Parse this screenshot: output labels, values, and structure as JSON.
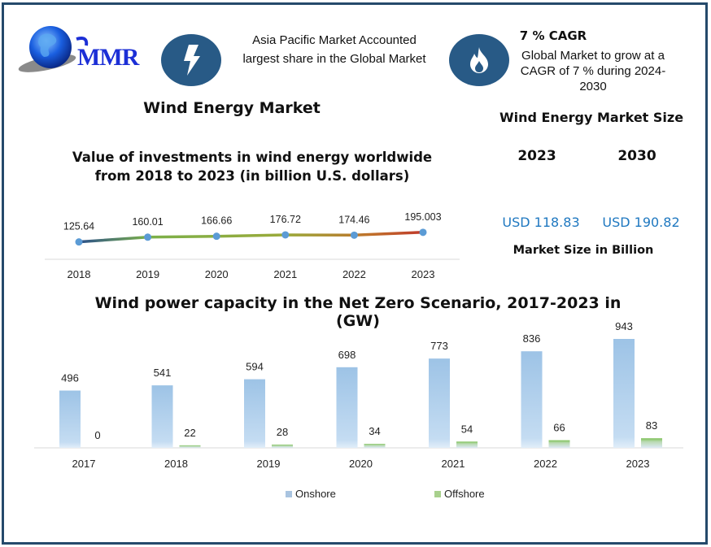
{
  "brand": {
    "logo_text": "MMR"
  },
  "colors": {
    "frame": "#254a6b",
    "icon_circle": "#285a86",
    "usd_blue": "#1f78c0",
    "onshore": "#a4c6e8",
    "offshore": "#7fc35a",
    "line_point": "#5b9bd5"
  },
  "highlights": {
    "asia": {
      "icon": "lightning-bolt-icon",
      "text": "Asia Pacific Market Accounted largest share in the Global Market"
    },
    "cagr": {
      "icon": "flame-icon",
      "title": "7 % CAGR",
      "text": "Global Market to grow at a CAGR of 7 % during 2024-2030"
    }
  },
  "main_title": "Wind Energy Market",
  "market_size": {
    "title": "Wind Energy Market Size",
    "years": [
      "2023",
      "2030"
    ],
    "values": [
      "USD 118.83",
      "USD 190.82"
    ],
    "caption": "Market Size in Billion"
  },
  "chart_data": [
    {
      "type": "line",
      "title": "Value of investments in wind energy worldwide from 2018 to 2023 (in billion U.S. dollars)",
      "xlabel": "",
      "ylabel": "",
      "categories": [
        "2018",
        "2019",
        "2020",
        "2021",
        "2022",
        "2023"
      ],
      "values": [
        125.64,
        160.01,
        166.66,
        176.72,
        174.46,
        195.003
      ],
      "labels": [
        "125.64",
        "160.01",
        "166.66",
        "176.72",
        "174.46",
        "195.003"
      ],
      "ylim": [
        0,
        700
      ],
      "grid": false,
      "legend": "none"
    },
    {
      "type": "bar",
      "title": "Wind power capacity in the Net Zero Scenario, 2017-2023 in (GW)",
      "xlabel": "",
      "ylabel": "",
      "categories": [
        "2017",
        "2018",
        "2019",
        "2020",
        "2021",
        "2022",
        "2023"
      ],
      "series": [
        {
          "name": "Onshore",
          "values": [
            496,
            541,
            594,
            698,
            773,
            836,
            943
          ]
        },
        {
          "name": "Offshore",
          "values": [
            0,
            22,
            28,
            34,
            54,
            66,
            83
          ]
        }
      ],
      "ylim": [
        0,
        1000
      ],
      "grid": false,
      "legend": "bottom"
    }
  ]
}
